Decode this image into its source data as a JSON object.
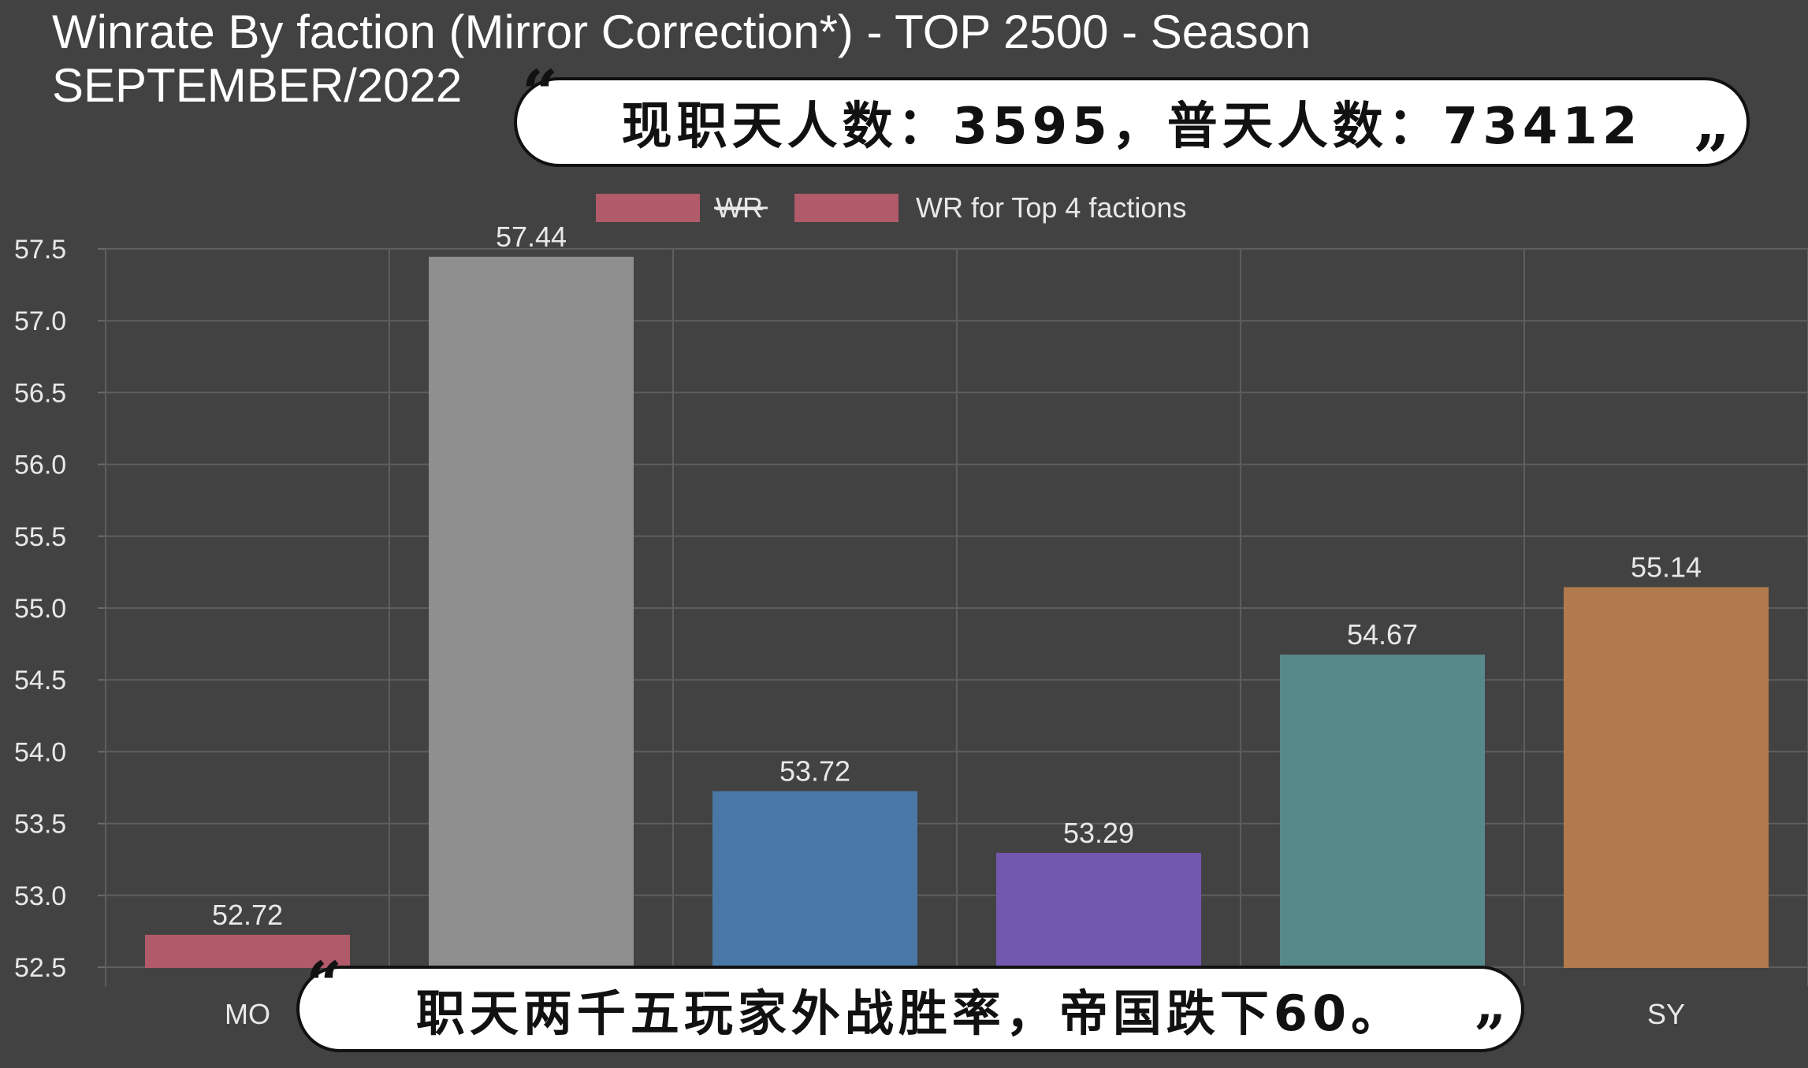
{
  "chart_data": {
    "type": "bar",
    "title_lines": [
      "Winrate By faction (Mirror Correction*) - TOP 2500 - Season",
      "SEPTEMBER/2022"
    ],
    "legend": [
      {
        "label": "WR",
        "color": "#b05a6a",
        "strikethrough": true
      },
      {
        "label": "WR for Top 4 factions",
        "color": "#b05a6a",
        "strikethrough": false
      }
    ],
    "categories": [
      "MO",
      "",
      "",
      "",
      "",
      "SY"
    ],
    "values": [
      52.72,
      57.44,
      53.72,
      53.29,
      54.67,
      55.14
    ],
    "value_labels": [
      "52.72",
      "57.44",
      "53.72",
      "53.29",
      "54.67",
      "55.14"
    ],
    "bar_colors": [
      "#b05a6a",
      "#8f8f8f",
      "#4a78a6",
      "#7358b0",
      "#58898a",
      "#b07a4c"
    ],
    "ylim": [
      52.5,
      57.5
    ],
    "yticks": [
      "52.5",
      "53.0",
      "53.5",
      "54.0",
      "54.5",
      "55.0",
      "55.5",
      "56.0",
      "56.5",
      "57.0",
      "57.5"
    ],
    "grid": true,
    "legend_position": "top-center"
  },
  "captions": {
    "top": "现职天人数：3595，普天人数：73412",
    "bottom": "职天两千五玩家外战胜率，帝国跌下60。"
  },
  "quotes": {
    "open": "“",
    "close": "”"
  }
}
